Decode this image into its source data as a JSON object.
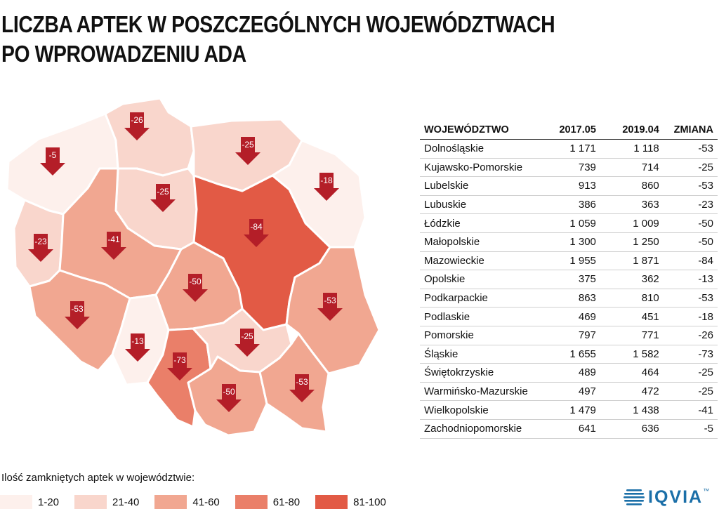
{
  "title": {
    "line1": "LICZBA APTEK W POSZCZEGÓLNYCH WOJEWÓDZTWACH",
    "line2": "PO WPROWADZENIU ADA"
  },
  "colors": {
    "c1": "#fdf0ec",
    "c2": "#f9d6cc",
    "c3": "#f1a791",
    "c4": "#ea7f69",
    "c5": "#e25a45",
    "arrow": "#b41e28"
  },
  "regions": [
    {
      "id": "zachodniopomorskie",
      "value": "-5",
      "color": "c1"
    },
    {
      "id": "pomorskie",
      "value": "-26",
      "color": "c2"
    },
    {
      "id": "warminsko-mazurskie",
      "value": "-25",
      "color": "c2"
    },
    {
      "id": "podlaskie",
      "value": "-18",
      "color": "c1"
    },
    {
      "id": "kujawsko-pomorskie",
      "value": "-25",
      "color": "c2"
    },
    {
      "id": "lubuskie",
      "value": "-23",
      "color": "c2"
    },
    {
      "id": "wielkopolskie",
      "value": "-41",
      "color": "c3"
    },
    {
      "id": "mazowieckie",
      "value": "-84",
      "color": "c5"
    },
    {
      "id": "lodzkie",
      "value": "-50",
      "color": "c3"
    },
    {
      "id": "lubelskie",
      "value": "-53",
      "color": "c3"
    },
    {
      "id": "dolnoslaskie",
      "value": "-53",
      "color": "c3"
    },
    {
      "id": "opolskie",
      "value": "-13",
      "color": "c1"
    },
    {
      "id": "slaskie",
      "value": "-73",
      "color": "c4"
    },
    {
      "id": "swietokrzyskie",
      "value": "-25",
      "color": "c2"
    },
    {
      "id": "malopolskie",
      "value": "-50",
      "color": "c3"
    },
    {
      "id": "podkarpackie",
      "value": "-53",
      "color": "c3"
    }
  ],
  "table": {
    "headers": [
      "WOJEWÓDZTWO",
      "2017.05",
      "2019.04",
      "ZMIANA"
    ],
    "rows": [
      [
        "Dolnośląskie",
        "1 171",
        "1 118",
        "-53"
      ],
      [
        "Kujawsko-Pomorskie",
        "739",
        "714",
        "-25"
      ],
      [
        "Lubelskie",
        "913",
        "860",
        "-53"
      ],
      [
        "Lubuskie",
        "386",
        "363",
        "-23"
      ],
      [
        "Łódzkie",
        "1 059",
        "1 009",
        "-50"
      ],
      [
        "Małopolskie",
        "1 300",
        "1 250",
        "-50"
      ],
      [
        "Mazowieckie",
        "1 955",
        "1 871",
        "-84"
      ],
      [
        "Opolskie",
        "375",
        "362",
        "-13"
      ],
      [
        "Podkarpackie",
        "863",
        "810",
        "-53"
      ],
      [
        "Podlaskie",
        "469",
        "451",
        "-18"
      ],
      [
        "Pomorskie",
        "797",
        "771",
        "-26"
      ],
      [
        "Śląskie",
        "1 655",
        "1 582",
        "-73"
      ],
      [
        "Świętokrzyskie",
        "489",
        "464",
        "-25"
      ],
      [
        "Warmińsko-Mazurskie",
        "497",
        "472",
        "-25"
      ],
      [
        "Wielkopolskie",
        "1 479",
        "1 438",
        "-41"
      ],
      [
        "Zachodniopomorskie",
        "641",
        "636",
        "-5"
      ]
    ]
  },
  "legend": {
    "title": "Ilość zamkniętych aptek w województwie:",
    "items": [
      {
        "label": "1-20",
        "color": "c1"
      },
      {
        "label": "21-40",
        "color": "c2"
      },
      {
        "label": "41-60",
        "color": "c3"
      },
      {
        "label": "61-80",
        "color": "c4"
      },
      {
        "label": "81-100",
        "color": "c5"
      }
    ]
  },
  "logo": {
    "text": "IQVIA",
    "mark": "™"
  }
}
